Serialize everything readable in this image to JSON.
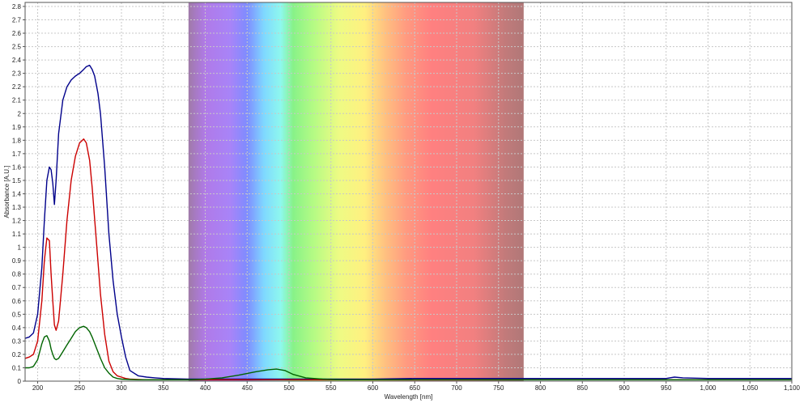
{
  "chart_data": {
    "type": "line",
    "title": "",
    "xlabel": "Wavelength [nm]",
    "ylabel": "Absorbance [A.U.]",
    "xlim": [
      185,
      1100
    ],
    "ylim": [
      0,
      2.83
    ],
    "x_ticks": [
      200,
      250,
      300,
      350,
      400,
      450,
      500,
      550,
      600,
      650,
      700,
      750,
      800,
      850,
      900,
      950,
      1000,
      1050,
      1100
    ],
    "x_tick_labels": [
      "200",
      "250",
      "300",
      "350",
      "400",
      "450",
      "500",
      "550",
      "600",
      "650",
      "700",
      "750",
      "800",
      "850",
      "900",
      "950",
      "1,000",
      "1,050",
      "1,100"
    ],
    "y_ticks": [
      0,
      0.1,
      0.2,
      0.3,
      0.4,
      0.5,
      0.6,
      0.7,
      0.8,
      0.9,
      1,
      1.1,
      1.2,
      1.3,
      1.4,
      1.5,
      1.6,
      1.7,
      1.8,
      1.9,
      2,
      2.1,
      2.2,
      2.3,
      2.4,
      2.5,
      2.6,
      2.7,
      2.8
    ],
    "y_tick_labels": [
      "0",
      "0.1",
      "0.2",
      "0.3",
      "0.4",
      "0.5",
      "0.6",
      "0.7",
      "0.8",
      "0.9",
      "1",
      "1.1",
      "1.2",
      "1.3",
      "1.4",
      "1.5",
      "1.6",
      "1.7",
      "1.8",
      "1.9",
      "2",
      "2.1",
      "2.2",
      "2.3",
      "2.4",
      "2.5",
      "2.6",
      "2.7",
      "2.8"
    ],
    "grid": true,
    "visible_spectrum_band": {
      "x_start": 380,
      "x_end": 780,
      "stops": [
        {
          "x": 380,
          "color": "#a07aa8"
        },
        {
          "x": 400,
          "color": "#b07ae8"
        },
        {
          "x": 430,
          "color": "#a884f8"
        },
        {
          "x": 450,
          "color": "#7f8cff"
        },
        {
          "x": 470,
          "color": "#7fd8ff"
        },
        {
          "x": 490,
          "color": "#8ef8ee"
        },
        {
          "x": 505,
          "color": "#88f288"
        },
        {
          "x": 530,
          "color": "#b6fb84"
        },
        {
          "x": 560,
          "color": "#eefb84"
        },
        {
          "x": 590,
          "color": "#fff080"
        },
        {
          "x": 615,
          "color": "#ffc080"
        },
        {
          "x": 640,
          "color": "#ff9a80"
        },
        {
          "x": 670,
          "color": "#ff8080"
        },
        {
          "x": 720,
          "color": "#f28080"
        },
        {
          "x": 760,
          "color": "#c07a7a"
        },
        {
          "x": 780,
          "color": "#b07878"
        }
      ]
    },
    "series": [
      {
        "color": "#00008b",
        "x": [
          185,
          190,
          195,
          200,
          205,
          208,
          211,
          214,
          216,
          218,
          220,
          222,
          225,
          230,
          235,
          240,
          245,
          250,
          255,
          258,
          262,
          265,
          268,
          272,
          275,
          280,
          285,
          290,
          295,
          300,
          305,
          310,
          320,
          330,
          340,
          350,
          380,
          400,
          450,
          500,
          550,
          600,
          650,
          700,
          750,
          800,
          850,
          900,
          950,
          960,
          970,
          1000,
          1050,
          1100
        ],
        "y": [
          0.32,
          0.33,
          0.36,
          0.5,
          0.85,
          1.2,
          1.5,
          1.6,
          1.58,
          1.48,
          1.32,
          1.5,
          1.85,
          2.1,
          2.2,
          2.25,
          2.28,
          2.3,
          2.33,
          2.35,
          2.36,
          2.33,
          2.28,
          2.15,
          2.0,
          1.6,
          1.1,
          0.75,
          0.5,
          0.33,
          0.18,
          0.08,
          0.04,
          0.03,
          0.025,
          0.02,
          0.015,
          0.015,
          0.015,
          0.015,
          0.015,
          0.015,
          0.02,
          0.02,
          0.02,
          0.02,
          0.02,
          0.02,
          0.02,
          0.03,
          0.025,
          0.02,
          0.02,
          0.02
        ]
      },
      {
        "color": "#cc0000",
        "x": [
          185,
          190,
          195,
          200,
          205,
          208,
          211,
          214,
          216,
          218,
          220,
          222,
          225,
          230,
          235,
          240,
          245,
          250,
          255,
          258,
          262,
          265,
          270,
          275,
          280,
          285,
          290,
          295,
          300,
          305,
          310,
          320,
          330,
          350,
          400,
          450,
          500,
          550,
          600,
          650,
          700,
          750,
          800,
          850,
          900,
          950,
          1000,
          1050,
          1100
        ],
        "y": [
          0.17,
          0.18,
          0.2,
          0.3,
          0.6,
          0.9,
          1.07,
          1.05,
          0.8,
          0.6,
          0.42,
          0.38,
          0.45,
          0.8,
          1.2,
          1.5,
          1.68,
          1.78,
          1.81,
          1.78,
          1.65,
          1.45,
          1.05,
          0.65,
          0.35,
          0.15,
          0.07,
          0.04,
          0.03,
          0.02,
          0.015,
          0.012,
          0.01,
          0.01,
          0.01,
          0.01,
          0.01,
          0.01,
          0.01,
          0.01,
          0.01,
          0.01,
          0.01,
          0.01,
          0.01,
          0.01,
          0.01,
          0.01,
          0.01
        ]
      },
      {
        "color": "#006400",
        "x": [
          185,
          190,
          195,
          200,
          205,
          208,
          211,
          214,
          216,
          218,
          220,
          222,
          225,
          230,
          235,
          240,
          245,
          250,
          255,
          258,
          262,
          265,
          270,
          275,
          280,
          285,
          290,
          295,
          300,
          310,
          320,
          350,
          380,
          400,
          420,
          440,
          460,
          475,
          485,
          495,
          505,
          520,
          540,
          560,
          600,
          650,
          700,
          750,
          800,
          900,
          1000,
          1100
        ],
        "y": [
          0.1,
          0.1,
          0.11,
          0.16,
          0.28,
          0.33,
          0.34,
          0.3,
          0.24,
          0.2,
          0.17,
          0.16,
          0.17,
          0.22,
          0.27,
          0.32,
          0.37,
          0.4,
          0.41,
          0.4,
          0.37,
          0.33,
          0.25,
          0.17,
          0.1,
          0.06,
          0.03,
          0.02,
          0.015,
          0.012,
          0.01,
          0.01,
          0.01,
          0.015,
          0.025,
          0.045,
          0.07,
          0.085,
          0.09,
          0.08,
          0.05,
          0.025,
          0.015,
          0.01,
          0.01,
          0.01,
          0.01,
          0.01,
          0.01,
          0.01,
          0.01,
          0.01
        ]
      }
    ]
  }
}
